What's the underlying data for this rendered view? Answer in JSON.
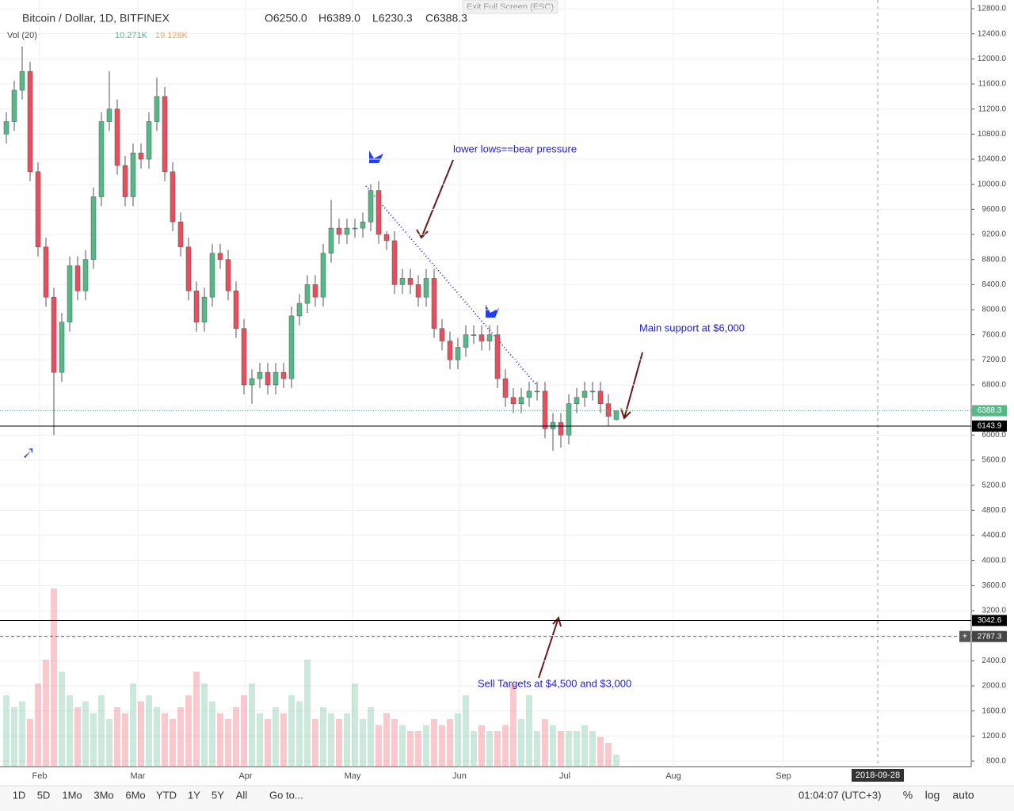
{
  "chart_data": {
    "type": "candlestick",
    "symbol": "Bitcoin / Dollar, 1D, BITFINEX",
    "ohlc_legend": [
      "O6250.0",
      "H6389.0",
      "L6230.3",
      "C6388.3"
    ],
    "volume_legend": {
      "name": "Vol (20)",
      "value": "10.271K",
      "ma": "19.128K"
    },
    "exit_button": "Exit Full Screen (ESC)",
    "candles": [
      [
        10800,
        11150,
        10650,
        11000
      ],
      [
        11000,
        11650,
        10850,
        11500
      ],
      [
        11500,
        12200,
        11350,
        11800
      ],
      [
        11800,
        11950,
        10050,
        10200
      ],
      [
        10200,
        10350,
        8850,
        9000
      ],
      [
        9000,
        9150,
        8050,
        8200
      ],
      [
        8200,
        8350,
        6000,
        7000
      ],
      [
        7000,
        7950,
        6850,
        7800
      ],
      [
        7800,
        8850,
        7650,
        8700
      ],
      [
        8700,
        8850,
        8150,
        8300
      ],
      [
        8300,
        8950,
        8150,
        8800
      ],
      [
        8800,
        9950,
        8650,
        9800
      ],
      [
        9800,
        11150,
        9650,
        11000
      ],
      [
        11000,
        11800,
        10850,
        11200
      ],
      [
        11200,
        11350,
        10150,
        10300
      ],
      [
        10300,
        10450,
        9650,
        9800
      ],
      [
        9800,
        10650,
        9650,
        10500
      ],
      [
        10500,
        10650,
        10250,
        10400
      ],
      [
        10400,
        11150,
        10250,
        11000
      ],
      [
        11000,
        11700,
        10850,
        11400
      ],
      [
        11400,
        11550,
        10050,
        10200
      ],
      [
        10200,
        10350,
        9250,
        9400
      ],
      [
        9400,
        9550,
        8850,
        9000
      ],
      [
        9000,
        9150,
        8150,
        8300
      ],
      [
        8300,
        8450,
        7650,
        7800
      ],
      [
        7800,
        8350,
        7650,
        8200
      ],
      [
        8200,
        9050,
        8050,
        8900
      ],
      [
        8900,
        9050,
        8650,
        8800
      ],
      [
        8800,
        8950,
        8150,
        8300
      ],
      [
        8300,
        8450,
        7550,
        7700
      ],
      [
        7700,
        7850,
        6650,
        6800
      ],
      [
        6800,
        7050,
        6500,
        6900
      ],
      [
        6900,
        7150,
        6750,
        7000
      ],
      [
        7000,
        7150,
        6650,
        6800
      ],
      [
        6800,
        7150,
        6650,
        7000
      ],
      [
        7000,
        7150,
        6750,
        6900
      ],
      [
        6900,
        8050,
        6750,
        7900
      ],
      [
        7900,
        8250,
        7750,
        8100
      ],
      [
        8100,
        8550,
        7950,
        8400
      ],
      [
        8400,
        8550,
        8050,
        8200
      ],
      [
        8200,
        9050,
        8050,
        8900
      ],
      [
        8900,
        9750,
        8750,
        9300
      ],
      [
        9300,
        9450,
        9050,
        9200
      ],
      [
        9200,
        9450,
        9050,
        9300
      ],
      [
        9300,
        9450,
        9150,
        9300
      ],
      [
        9300,
        9550,
        9150,
        9400
      ],
      [
        9400,
        10000,
        9250,
        9900
      ],
      [
        9900,
        10050,
        9050,
        9200
      ],
      [
        9200,
        9250,
        8950,
        9100
      ],
      [
        9100,
        9250,
        8250,
        8400
      ],
      [
        8400,
        8650,
        8250,
        8500
      ],
      [
        8500,
        8650,
        8250,
        8400
      ],
      [
        8400,
        8550,
        8050,
        8200
      ],
      [
        8200,
        8650,
        8050,
        8500
      ],
      [
        8500,
        8650,
        7550,
        7700
      ],
      [
        7700,
        7850,
        7350,
        7500
      ],
      [
        7500,
        7650,
        7050,
        7200
      ],
      [
        7200,
        7550,
        7050,
        7400
      ],
      [
        7400,
        7750,
        7250,
        7600
      ],
      [
        7600,
        7750,
        7450,
        7600
      ],
      [
        7600,
        7750,
        7350,
        7500
      ],
      [
        7500,
        7750,
        7350,
        7600
      ],
      [
        7600,
        7750,
        6750,
        6900
      ],
      [
        6900,
        7050,
        6450,
        6600
      ],
      [
        6600,
        6750,
        6350,
        6500
      ],
      [
        6500,
        6750,
        6350,
        6600
      ],
      [
        6600,
        6850,
        6450,
        6700
      ],
      [
        6700,
        6850,
        6550,
        6700
      ],
      [
        6700,
        6850,
        5950,
        6100
      ],
      [
        6100,
        6350,
        5750,
        6200
      ],
      [
        6200,
        6350,
        5800,
        6000
      ],
      [
        6000,
        6650,
        5850,
        6500
      ],
      [
        6500,
        6750,
        6350,
        6600
      ],
      [
        6600,
        6850,
        6450,
        6700
      ],
      [
        6700,
        6850,
        6550,
        6700
      ],
      [
        6700,
        6850,
        6350,
        6500
      ],
      [
        6500,
        6650,
        6150,
        6300
      ],
      [
        6250,
        6389,
        6230,
        6388
      ]
    ],
    "volume": [
      60,
      50,
      55,
      40,
      70,
      90,
      150,
      80,
      60,
      50,
      55,
      45,
      60,
      40,
      50,
      45,
      70,
      55,
      60,
      50,
      45,
      40,
      50,
      60,
      80,
      70,
      55,
      45,
      40,
      50,
      60,
      70,
      45,
      40,
      50,
      45,
      60,
      55,
      90,
      40,
      50,
      45,
      40,
      45,
      70,
      40,
      50,
      35,
      45,
      40,
      35,
      30,
      30,
      35,
      40,
      35,
      40,
      45,
      60,
      30,
      35,
      30,
      30,
      35,
      70,
      40,
      60,
      30,
      40,
      35,
      30,
      30,
      30,
      35,
      30,
      25,
      20,
      10.271
    ],
    "up_color": "#53b987",
    "down_color": "#eb4d5c",
    "ylim": [
      800,
      12800
    ],
    "yticks": [
      {
        "value": 800,
        "label": "800.0"
      },
      {
        "value": 1200,
        "label": "1200.0"
      },
      {
        "value": 1600,
        "label": "1600.0"
      },
      {
        "value": 2000,
        "label": "2000.0"
      },
      {
        "value": 2400,
        "label": "2400.0"
      },
      {
        "value": 2800,
        "label": "2800.0"
      },
      {
        "value": 3200,
        "label": "3200.0"
      },
      {
        "value": 3600,
        "label": "3600.0"
      },
      {
        "value": 4000,
        "label": "4000.0"
      },
      {
        "value": 4400,
        "label": "4400.0"
      },
      {
        "value": 4800,
        "label": "4800.0"
      },
      {
        "value": 5200,
        "label": "5200.0"
      },
      {
        "value": 5600,
        "label": "5600.0"
      },
      {
        "value": 6000,
        "label": "6000.0"
      },
      {
        "value": 6400,
        "label": "6400.0"
      },
      {
        "value": 6800,
        "label": "6800.0"
      },
      {
        "value": 7200,
        "label": "7200.0"
      },
      {
        "value": 7600,
        "label": "7600.0"
      },
      {
        "value": 8000,
        "label": "8000.0"
      },
      {
        "value": 8400,
        "label": "8400.0"
      },
      {
        "value": 8800,
        "label": "8800.0"
      },
      {
        "value": 9200,
        "label": "9200.0"
      },
      {
        "value": 9600,
        "label": "9600.0"
      },
      {
        "value": 10000,
        "label": "10000.0"
      },
      {
        "value": 10400,
        "label": "10400.0"
      },
      {
        "value": 10800,
        "label": "10800.0"
      },
      {
        "value": 11200,
        "label": "11200.0"
      },
      {
        "value": 11600,
        "label": "11600.0"
      },
      {
        "value": 12000,
        "label": "12000.0"
      },
      {
        "value": 12400,
        "label": "12400.0"
      },
      {
        "value": 12800,
        "label": "12800.0"
      }
    ],
    "vlim": [
      0,
      160
    ],
    "months": [
      "Feb",
      "Mar",
      "Apr",
      "May",
      "Jun",
      "Jul",
      "Aug",
      "Sep"
    ],
    "last_price": 6388.3,
    "levels": [
      6143.9,
      3042.6
    ],
    "dashed_level": 2787.3,
    "date_marker": "2018-09-28",
    "annotations": [
      "lower lows==bear pressure",
      "Main support at $6,000",
      "Sell Targets at $4,500 and $3,000"
    ],
    "toolbar": [
      "1D",
      "5D",
      "1Mo",
      "3Mo",
      "6Mo",
      "YTD",
      "1Y",
      "5Y",
      "All"
    ],
    "goto": "Go to...",
    "clock": "01:04:07 (UTC+3)",
    "scale_buttons": [
      "%",
      "log",
      "auto"
    ]
  }
}
